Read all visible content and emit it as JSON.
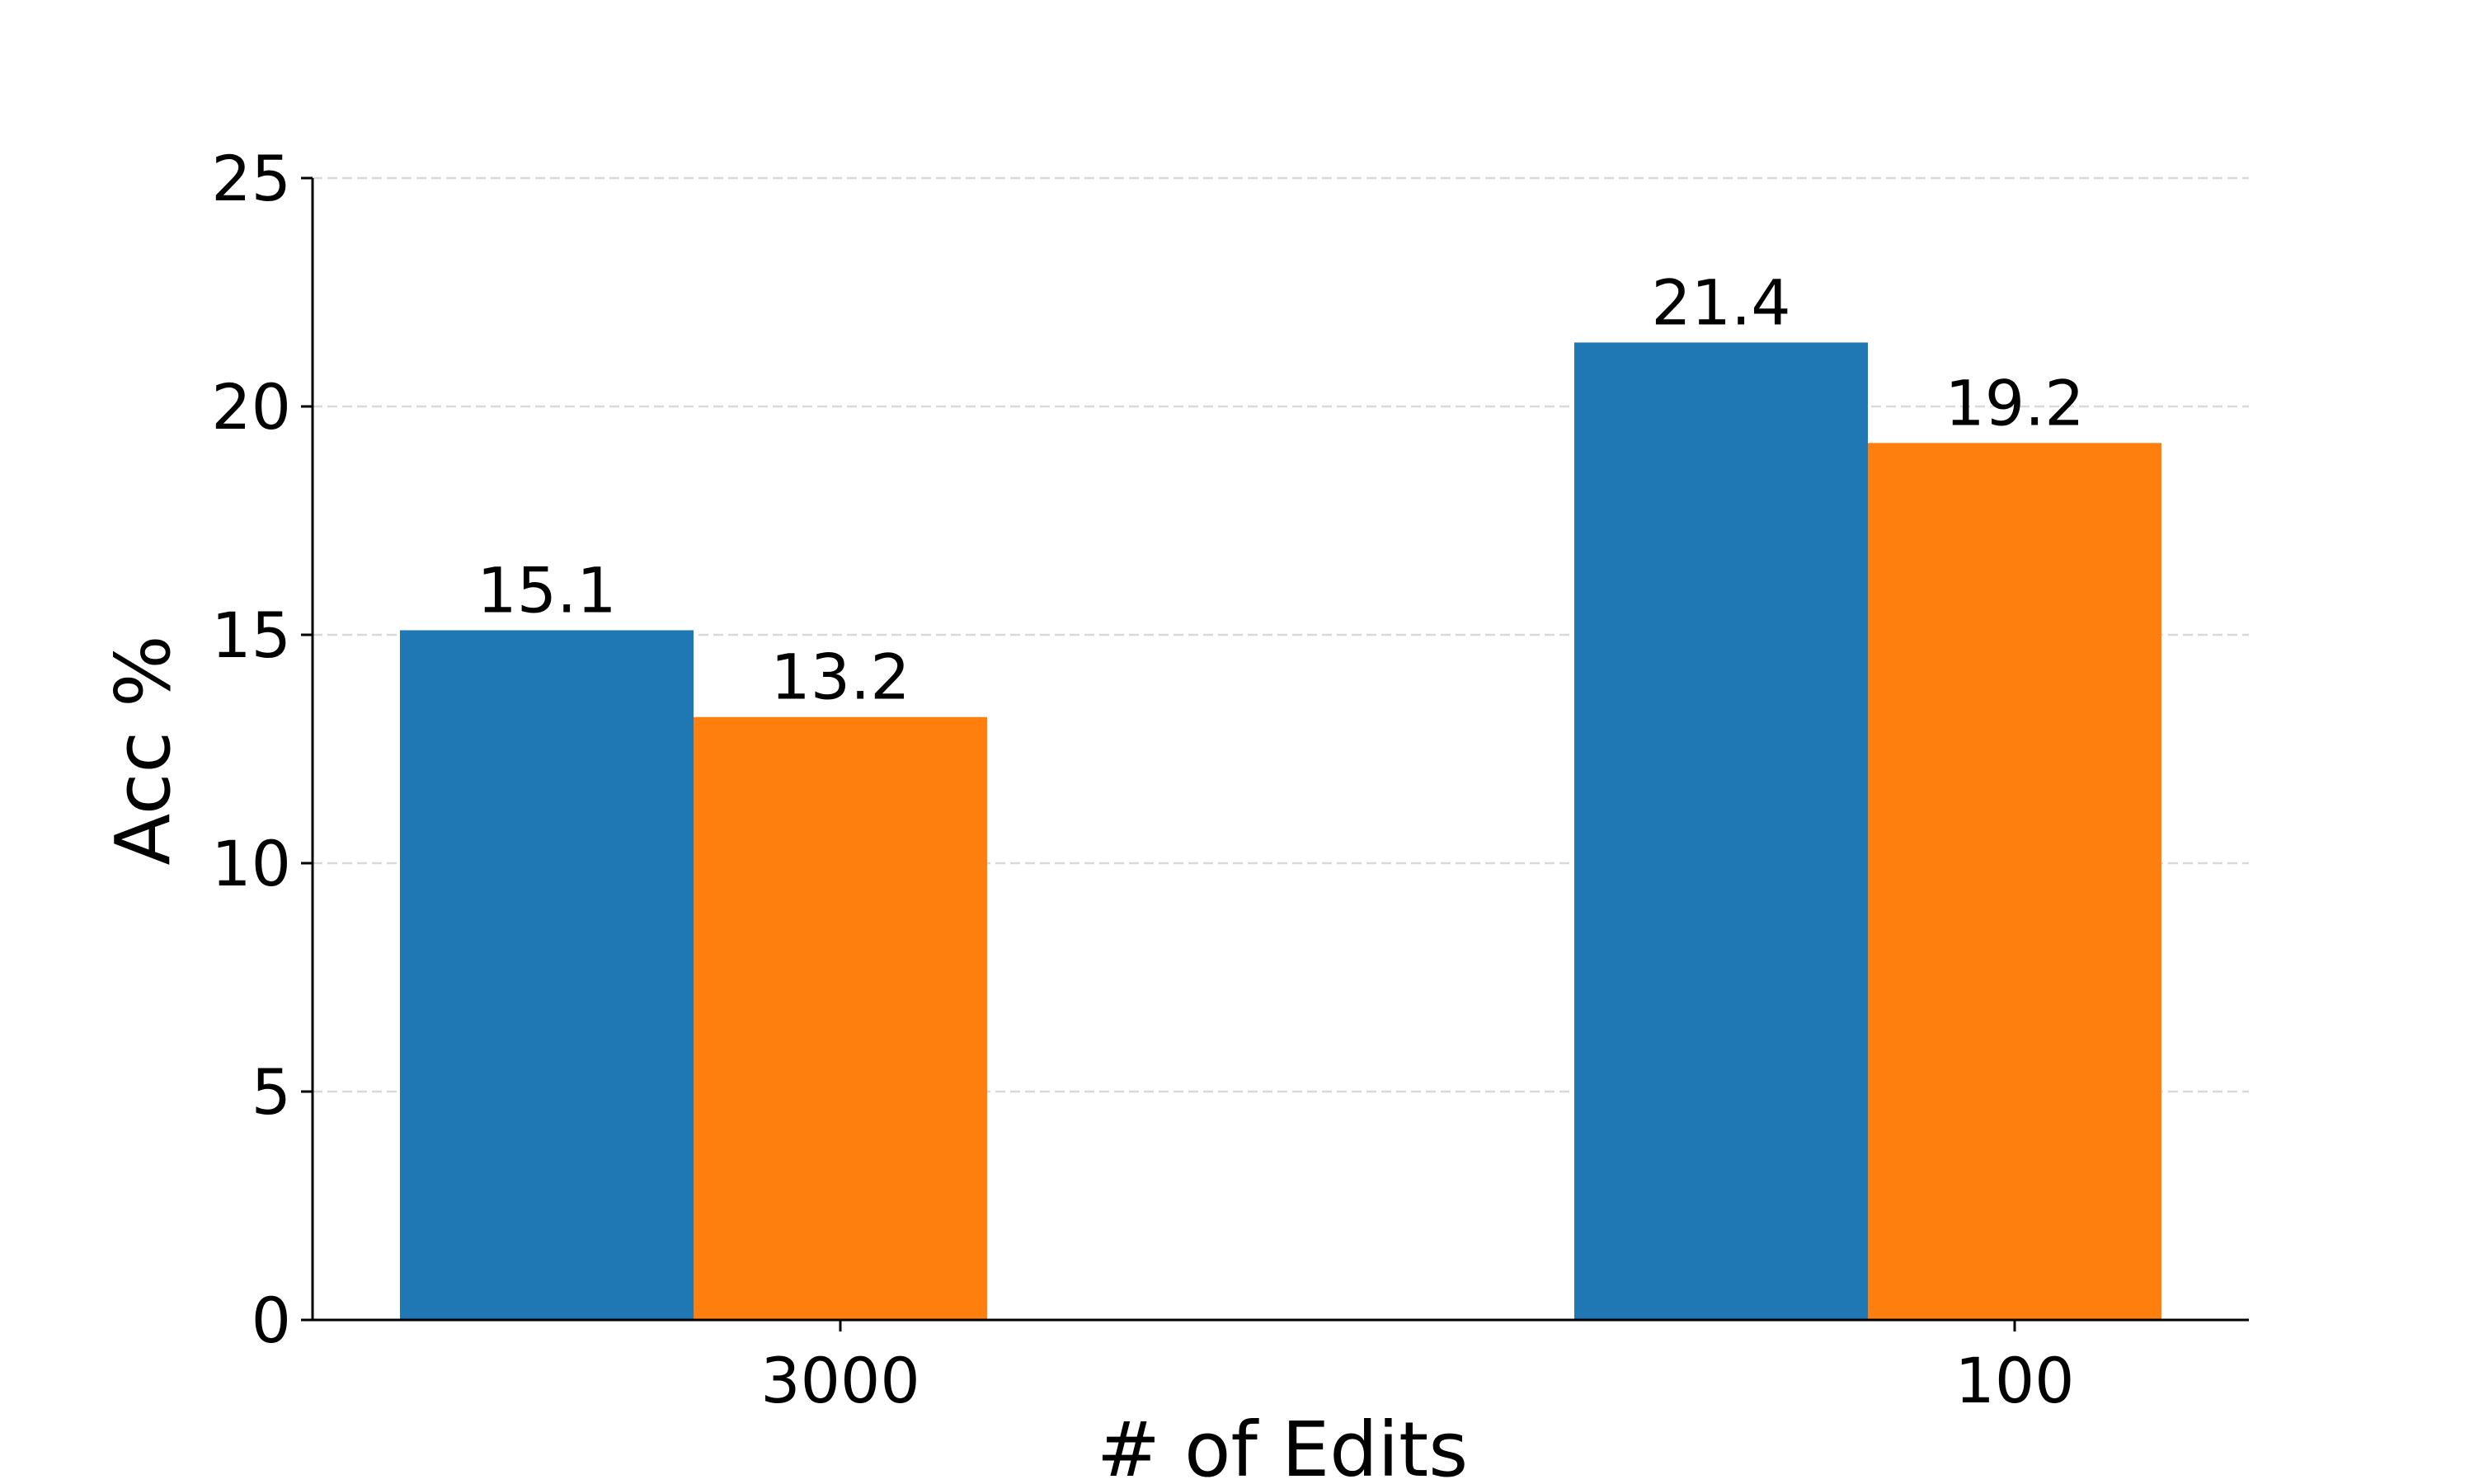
{
  "chart_data": {
    "type": "bar",
    "x_label": "# of Edits",
    "y_label": "Acc %",
    "categories": [
      "3000",
      "100"
    ],
    "series": [
      {
        "color": "#1f77b4",
        "values": [
          15.1,
          21.4
        ]
      },
      {
        "color": "#ff7f0e",
        "values": [
          13.2,
          19.2
        ]
      }
    ],
    "ylim": [
      0,
      25
    ],
    "yticks": [
      0,
      5,
      10,
      15,
      20,
      25
    ],
    "grid": true
  }
}
